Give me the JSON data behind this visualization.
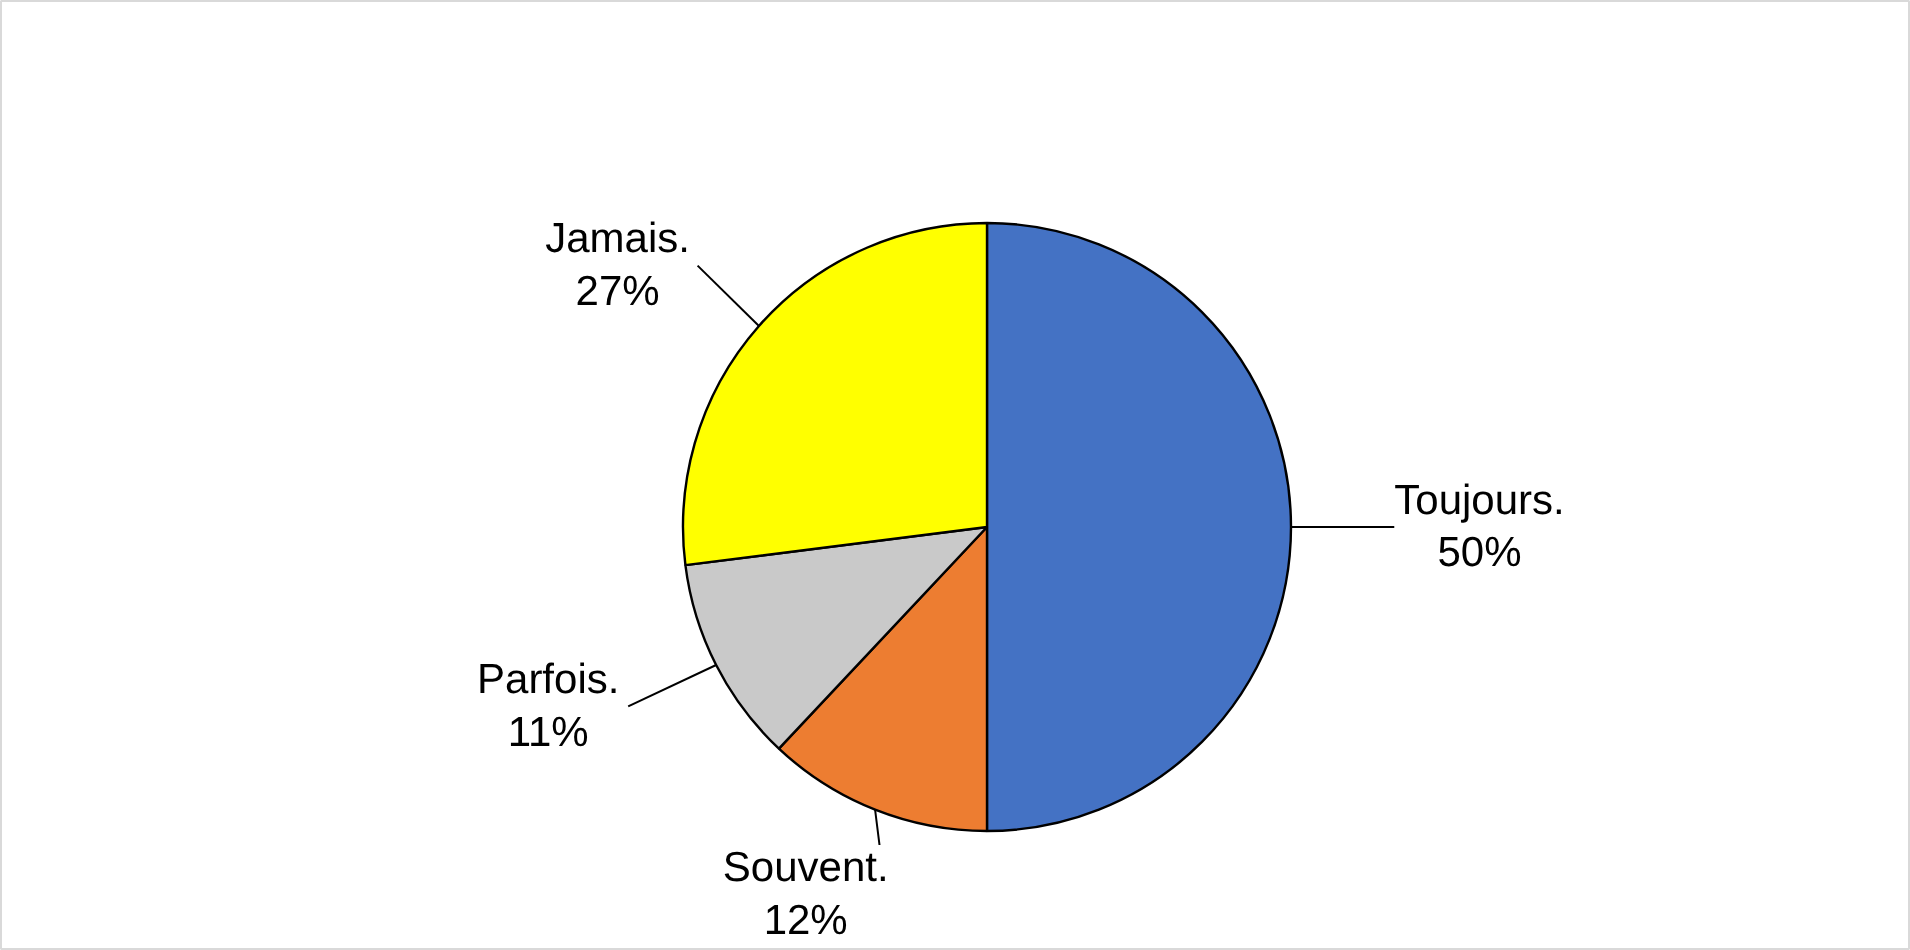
{
  "chart_data": {
    "type": "pie",
    "categories": [
      "Toujours.",
      "Souvent.",
      "Parfois.",
      "Jamais."
    ],
    "values": [
      50,
      12,
      11,
      27
    ],
    "colors": [
      "#4472c4",
      "#ed7d31",
      "#c9c9c9",
      "#ffff00"
    ],
    "value_labels": [
      "50%",
      "12%",
      "11%",
      "27%"
    ]
  }
}
